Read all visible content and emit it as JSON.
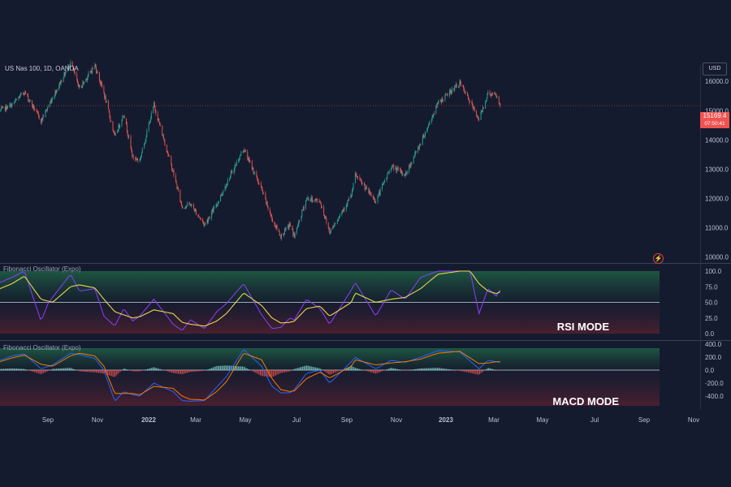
{
  "header": {
    "symbol": "US Nas 100, 1D, OANDA",
    "currency": "USD",
    "last_price": "15169.4",
    "countdown": "07:50:41"
  },
  "indicators": [
    {
      "label": "Fibonacci Oscillator (Expo)",
      "mode_text": "RSI MODE"
    },
    {
      "label": "Fibonacci Oscillator (Expo)",
      "mode_text": "MACD MODE"
    }
  ],
  "colors": {
    "background": "#151b2e",
    "candle_up": "#26a69a",
    "candle_down": "#ef5350",
    "rsi_line": "#8a3ffc",
    "signal_line": "#e8d44d",
    "macd_line": "#2962ff",
    "macd_signal": "#f57c00",
    "zone_green": "#1d4b3a",
    "zone_red": "#4a1f2c"
  },
  "icons": {
    "alert": "lightning-icon"
  },
  "x_axis": [
    "Sep",
    "Nov",
    "2022",
    "Mar",
    "May",
    "Jul",
    "Sep",
    "Nov",
    "2023",
    "Mar",
    "May",
    "Jul",
    "Sep",
    "Nov"
  ],
  "chart_data": [
    {
      "type": "candlestick",
      "title": "US Nas 100, 1D, OANDA",
      "y_ticks": [
        "16000.0",
        "15000.0",
        "14000.0",
        "13000.0",
        "12000.0",
        "11000.0",
        "10000.0"
      ],
      "ylim": [
        9900,
        16700
      ],
      "x_ticks": [
        "Sep",
        "Nov",
        "2022",
        "Mar",
        "May",
        "Jul",
        "Sep",
        "Nov",
        "2023",
        "Mar",
        "May",
        "Jul",
        "Sep",
        "Nov"
      ],
      "last_value": 15169.4,
      "anchors": [
        [
          "2021-08-01",
          15000
        ],
        [
          "2021-08-20",
          15200
        ],
        [
          "2021-09-08",
          15650
        ],
        [
          "2021-10-04",
          14650
        ],
        [
          "2021-10-22",
          15450
        ],
        [
          "2021-11-19",
          16650
        ],
        [
          "2021-12-03",
          15750
        ],
        [
          "2021-12-27",
          16550
        ],
        [
          "2022-01-10",
          15600
        ],
        [
          "2022-01-27",
          14100
        ],
        [
          "2022-02-10",
          14900
        ],
        [
          "2022-02-24",
          13400
        ],
        [
          "2022-03-07",
          13300
        ],
        [
          "2022-03-29",
          15200
        ],
        [
          "2022-04-28",
          12900
        ],
        [
          "2022-05-12",
          11700
        ],
        [
          "2022-05-25",
          11800
        ],
        [
          "2022-06-16",
          11100
        ],
        [
          "2022-07-05",
          11800
        ],
        [
          "2022-07-20",
          12500
        ],
        [
          "2022-08-16",
          13700
        ],
        [
          "2022-09-13",
          12300
        ],
        [
          "2022-09-29",
          11300
        ],
        [
          "2022-10-13",
          10700
        ],
        [
          "2022-10-27",
          11100
        ],
        [
          "2022-11-03",
          10700
        ],
        [
          "2022-11-22",
          12000
        ],
        [
          "2022-12-13",
          11900
        ],
        [
          "2022-12-28",
          10850
        ],
        [
          "2023-01-31",
          12100
        ],
        [
          "2023-02-06",
          12800
        ],
        [
          "2023-03-10",
          11900
        ],
        [
          "2023-04-03",
          13100
        ],
        [
          "2023-04-25",
          12800
        ],
        [
          "2023-05-19",
          13900
        ],
        [
          "2023-06-15",
          15250
        ],
        [
          "2023-07-19",
          15950
        ],
        [
          "2023-08-18",
          14700
        ],
        [
          "2023-09-01",
          15600
        ],
        [
          "2023-09-14",
          15500
        ],
        [
          "2023-09-20",
          15169.4
        ]
      ]
    },
    {
      "type": "line",
      "title": "Fibonacci Oscillator (Expo)",
      "annotation": "RSI MODE",
      "y_ticks": [
        "100.0",
        "75.0",
        "50.0",
        "25.0",
        "0.0"
      ],
      "ylim": [
        0,
        100
      ],
      "levels": [
        50
      ],
      "series": [
        {
          "points": [
            [
              "2021-08-01",
              82
            ],
            [
              "2021-08-20",
              90
            ],
            [
              "2021-09-08",
              100
            ],
            [
              "2021-10-04",
              20
            ],
            [
              "2021-10-15",
              48
            ],
            [
              "2021-10-22",
              58
            ],
            [
              "2021-11-19",
              95
            ],
            [
              "2021-12-03",
              68
            ],
            [
              "2021-12-27",
              72
            ],
            [
              "2022-01-10",
              28
            ],
            [
              "2022-01-27",
              12
            ],
            [
              "2022-02-10",
              40
            ],
            [
              "2022-02-24",
              20
            ],
            [
              "2022-03-07",
              28
            ],
            [
              "2022-03-29",
              55
            ],
            [
              "2022-04-28",
              15
            ],
            [
              "2022-05-12",
              5
            ],
            [
              "2022-05-25",
              22
            ],
            [
              "2022-06-16",
              8
            ],
            [
              "2022-07-05",
              35
            ],
            [
              "2022-07-20",
              48
            ],
            [
              "2022-08-16",
              80
            ],
            [
              "2022-09-13",
              30
            ],
            [
              "2022-09-29",
              8
            ],
            [
              "2022-10-13",
              10
            ],
            [
              "2022-10-27",
              25
            ],
            [
              "2022-11-03",
              22
            ],
            [
              "2022-11-22",
              55
            ],
            [
              "2022-12-13",
              40
            ],
            [
              "2022-12-28",
              15
            ],
            [
              "2023-01-31",
              70
            ],
            [
              "2023-02-06",
              82
            ],
            [
              "2023-03-10",
              28
            ],
            [
              "2023-04-03",
              70
            ],
            [
              "2023-04-25",
              55
            ],
            [
              "2023-05-19",
              90
            ],
            [
              "2023-06-15",
              100
            ],
            [
              "2023-07-19",
              100
            ],
            [
              "2023-08-04",
              100
            ],
            [
              "2023-08-18",
              32
            ],
            [
              "2023-09-01",
              72
            ],
            [
              "2023-09-14",
              60
            ],
            [
              "2023-09-20",
              70
            ]
          ]
        },
        {
          "points": [
            [
              "2021-08-01",
              72
            ],
            [
              "2021-08-20",
              80
            ],
            [
              "2021-09-08",
              92
            ],
            [
              "2021-10-04",
              55
            ],
            [
              "2021-10-22",
              50
            ],
            [
              "2021-11-19",
              75
            ],
            [
              "2021-12-03",
              78
            ],
            [
              "2021-12-27",
              73
            ],
            [
              "2022-01-10",
              55
            ],
            [
              "2022-01-27",
              35
            ],
            [
              "2022-02-10",
              30
            ],
            [
              "2022-02-24",
              25
            ],
            [
              "2022-03-07",
              27
            ],
            [
              "2022-03-29",
              38
            ],
            [
              "2022-04-28",
              32
            ],
            [
              "2022-05-12",
              18
            ],
            [
              "2022-05-25",
              15
            ],
            [
              "2022-06-16",
              12
            ],
            [
              "2022-07-05",
              20
            ],
            [
              "2022-07-20",
              32
            ],
            [
              "2022-08-16",
              65
            ],
            [
              "2022-09-13",
              45
            ],
            [
              "2022-09-29",
              25
            ],
            [
              "2022-10-13",
              17
            ],
            [
              "2022-10-27",
              18
            ],
            [
              "2022-11-03",
              20
            ],
            [
              "2022-11-22",
              40
            ],
            [
              "2022-12-13",
              44
            ],
            [
              "2022-12-28",
              28
            ],
            [
              "2023-01-31",
              50
            ],
            [
              "2023-02-06",
              65
            ],
            [
              "2023-03-10",
              50
            ],
            [
              "2023-04-03",
              55
            ],
            [
              "2023-04-25",
              58
            ],
            [
              "2023-05-19",
              72
            ],
            [
              "2023-06-15",
              95
            ],
            [
              "2023-07-19",
              100
            ],
            [
              "2023-08-04",
              100
            ],
            [
              "2023-08-18",
              80
            ],
            [
              "2023-09-01",
              68
            ],
            [
              "2023-09-14",
              64
            ],
            [
              "2023-09-20",
              67
            ]
          ]
        }
      ]
    },
    {
      "type": "line",
      "title": "Fibonacci Oscillator (Expo)",
      "annotation": "MACD MODE",
      "y_ticks": [
        "400.0",
        "200.0",
        "0.0",
        "-200.0",
        "-400.0"
      ],
      "ylim": [
        -550,
        400
      ],
      "series": [
        {
          "points": [
            [
              "2021-08-01",
              150
            ],
            [
              "2021-08-20",
              220
            ],
            [
              "2021-09-08",
              250
            ],
            [
              "2021-10-04",
              20
            ],
            [
              "2021-10-22",
              80
            ],
            [
              "2021-11-19",
              260
            ],
            [
              "2021-12-03",
              240
            ],
            [
              "2021-12-27",
              180
            ],
            [
              "2022-01-10",
              0
            ],
            [
              "2022-01-27",
              -480
            ],
            [
              "2022-02-10",
              -330
            ],
            [
              "2022-02-24",
              -380
            ],
            [
              "2022-03-07",
              -400
            ],
            [
              "2022-03-29",
              -200
            ],
            [
              "2022-04-28",
              -330
            ],
            [
              "2022-05-12",
              -470
            ],
            [
              "2022-05-25",
              -480
            ],
            [
              "2022-06-16",
              -470
            ],
            [
              "2022-07-05",
              -260
            ],
            [
              "2022-07-20",
              -100
            ],
            [
              "2022-08-16",
              320
            ],
            [
              "2022-09-13",
              60
            ],
            [
              "2022-09-29",
              -250
            ],
            [
              "2022-10-13",
              -350
            ],
            [
              "2022-10-27",
              -350
            ],
            [
              "2022-11-03",
              -300
            ],
            [
              "2022-11-22",
              -50
            ],
            [
              "2022-12-13",
              0
            ],
            [
              "2022-12-28",
              -200
            ],
            [
              "2023-01-31",
              130
            ],
            [
              "2023-02-06",
              200
            ],
            [
              "2023-03-10",
              20
            ],
            [
              "2023-04-03",
              150
            ],
            [
              "2023-04-25",
              120
            ],
            [
              "2023-05-19",
              200
            ],
            [
              "2023-06-15",
              300
            ],
            [
              "2023-07-19",
              280
            ],
            [
              "2023-08-18",
              20
            ],
            [
              "2023-09-01",
              150
            ],
            [
              "2023-09-14",
              130
            ],
            [
              "2023-09-20",
              120
            ]
          ]
        },
        {
          "points": [
            [
              "2021-08-01",
              130
            ],
            [
              "2021-08-20",
              190
            ],
            [
              "2021-09-08",
              230
            ],
            [
              "2021-10-04",
              90
            ],
            [
              "2021-10-22",
              60
            ],
            [
              "2021-11-19",
              220
            ],
            [
              "2021-12-03",
              260
            ],
            [
              "2021-12-27",
              220
            ],
            [
              "2022-01-10",
              60
            ],
            [
              "2022-01-27",
              -360
            ],
            [
              "2022-02-10",
              -360
            ],
            [
              "2022-02-24",
              -360
            ],
            [
              "2022-03-07",
              -380
            ],
            [
              "2022-03-29",
              -250
            ],
            [
              "2022-04-28",
              -280
            ],
            [
              "2022-05-12",
              -400
            ],
            [
              "2022-05-25",
              -450
            ],
            [
              "2022-06-16",
              -460
            ],
            [
              "2022-07-05",
              -330
            ],
            [
              "2022-07-20",
              -180
            ],
            [
              "2022-08-16",
              260
            ],
            [
              "2022-09-13",
              160
            ],
            [
              "2022-09-29",
              -130
            ],
            [
              "2022-10-13",
              -300
            ],
            [
              "2022-10-27",
              -330
            ],
            [
              "2022-11-03",
              -320
            ],
            [
              "2022-11-22",
              -130
            ],
            [
              "2022-12-13",
              -30
            ],
            [
              "2022-12-28",
              -120
            ],
            [
              "2023-01-31",
              60
            ],
            [
              "2023-02-06",
              160
            ],
            [
              "2023-03-10",
              80
            ],
            [
              "2023-04-03",
              110
            ],
            [
              "2023-04-25",
              130
            ],
            [
              "2023-05-19",
              170
            ],
            [
              "2023-06-15",
              260
            ],
            [
              "2023-07-19",
              290
            ],
            [
              "2023-08-18",
              100
            ],
            [
              "2023-09-01",
              110
            ],
            [
              "2023-09-14",
              130
            ],
            [
              "2023-09-20",
              130
            ]
          ]
        }
      ]
    }
  ]
}
